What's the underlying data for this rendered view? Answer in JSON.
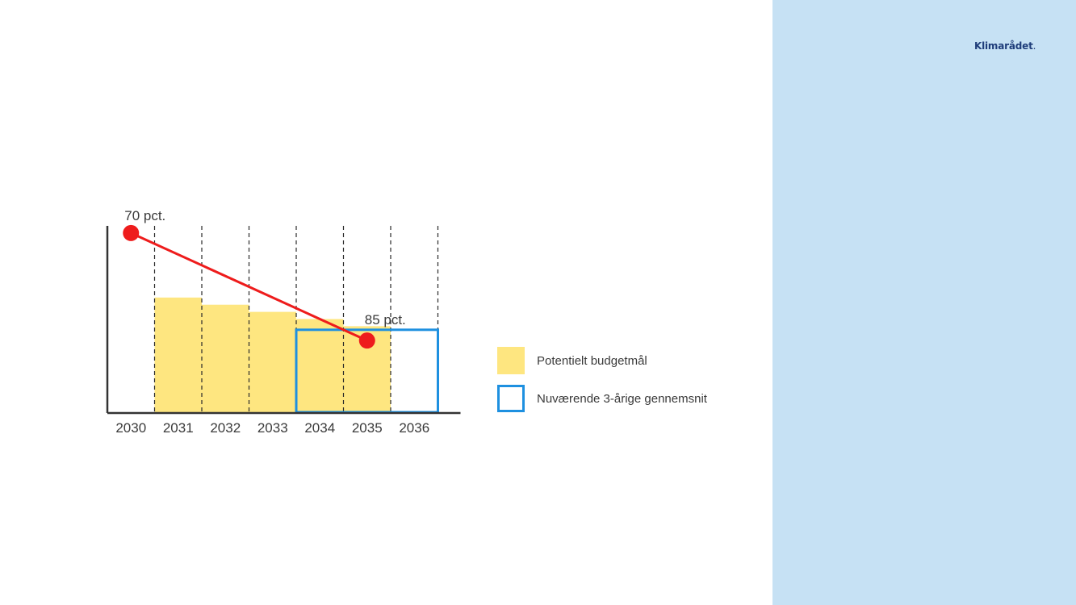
{
  "brand": {
    "name": "Klimarådet",
    "dot": "."
  },
  "colors": {
    "side_panel": "#c6e1f4",
    "bar_fill": "#fee680",
    "line": "#ee1c1c",
    "box": "#1e90e0",
    "axis": "#333333"
  },
  "legend": [
    {
      "label": "Potentielt budgetmål",
      "style": "filled",
      "color": "#fee680"
    },
    {
      "label": "Nuværende 3-årige gennemsnit",
      "style": "outline",
      "color": "#1e90e0"
    }
  ],
  "chart_data": {
    "type": "bar",
    "categories": [
      "2030",
      "2031",
      "2032",
      "2033",
      "2034",
      "2035",
      "2036"
    ],
    "series": [
      {
        "values": [
          null,
          79,
          80,
          81,
          82,
          83,
          null
        ]
      }
    ],
    "line": {
      "x": [
        "2030",
        "2035"
      ],
      "y": [
        70,
        85
      ],
      "labels": [
        "70 pct.",
        "85 pct."
      ]
    },
    "average_box": {
      "x_start": "2034",
      "x_end": "2036",
      "value": 83.5
    },
    "ylim": [
      95,
      69
    ],
    "y_axis_inverted": true,
    "y_ticks_shown": false,
    "grid": "dashed vertical separators between years"
  }
}
